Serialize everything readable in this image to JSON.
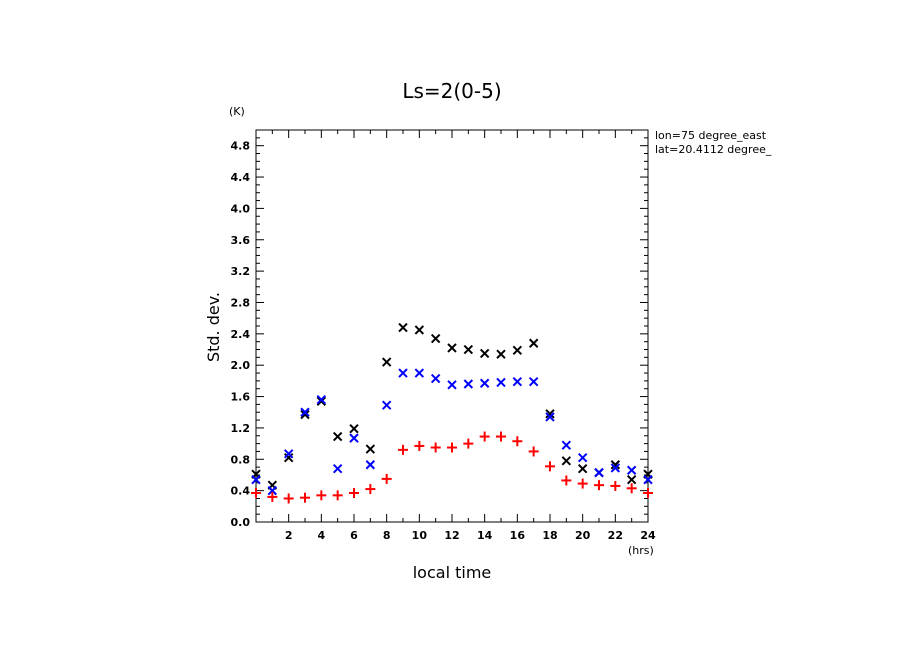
{
  "chart_data": {
    "type": "scatter",
    "title": "Ls=2(0-5)",
    "xlabel": "local time",
    "ylabel": "Std. dev.",
    "x_unit": "(hrs)",
    "y_unit": "(K)",
    "xlim": [
      0,
      24
    ],
    "ylim": [
      0,
      5
    ],
    "x_ticks": [
      2,
      4,
      6,
      8,
      10,
      12,
      14,
      16,
      18,
      20,
      22,
      24
    ],
    "y_ticks": [
      "0.0",
      "0.4",
      "0.8",
      "1.2",
      "1.6",
      "2.0",
      "2.4",
      "2.8",
      "3.2",
      "3.6",
      "4.0",
      "4.4",
      "4.8"
    ],
    "grid": false,
    "legend": "none",
    "annotations": [
      "lon=75 degree_east",
      "lat=20.4112 degree_"
    ],
    "series": [
      {
        "marker": "x",
        "color": "#000000",
        "x": [
          0,
          1,
          2,
          3,
          4,
          5,
          6,
          7,
          8,
          9,
          10,
          11,
          12,
          13,
          14,
          15,
          16,
          17,
          18,
          19,
          20,
          21,
          22,
          23,
          24
        ],
        "y": [
          0.61,
          0.47,
          0.82,
          1.37,
          1.54,
          1.09,
          1.19,
          0.93,
          2.04,
          2.48,
          2.45,
          2.34,
          2.22,
          2.2,
          2.15,
          2.14,
          2.19,
          2.28,
          1.38,
          0.78,
          0.68,
          0.63,
          0.73,
          0.54,
          0.61
        ]
      },
      {
        "marker": "x",
        "color": "#0000ff",
        "x": [
          0,
          1,
          2,
          3,
          4,
          5,
          6,
          7,
          8,
          9,
          10,
          11,
          12,
          13,
          14,
          15,
          16,
          17,
          18,
          19,
          20,
          21,
          22,
          23,
          24
        ],
        "y": [
          0.54,
          0.4,
          0.87,
          1.4,
          1.56,
          0.68,
          1.07,
          0.73,
          1.49,
          1.9,
          1.9,
          1.83,
          1.75,
          1.76,
          1.77,
          1.78,
          1.79,
          1.79,
          1.34,
          0.98,
          0.82,
          0.63,
          0.69,
          0.66,
          0.54
        ]
      },
      {
        "marker": "+",
        "color": "#ff0000",
        "x": [
          0,
          1,
          2,
          3,
          4,
          5,
          6,
          7,
          8,
          9,
          10,
          11,
          12,
          13,
          14,
          15,
          16,
          17,
          18,
          19,
          20,
          21,
          22,
          23,
          24
        ],
        "y": [
          0.37,
          0.32,
          0.3,
          0.31,
          0.34,
          0.34,
          0.37,
          0.42,
          0.55,
          0.92,
          0.97,
          0.95,
          0.95,
          1.0,
          1.09,
          1.09,
          1.03,
          0.9,
          0.71,
          0.53,
          0.49,
          0.47,
          0.46,
          0.43,
          0.37
        ]
      }
    ]
  }
}
